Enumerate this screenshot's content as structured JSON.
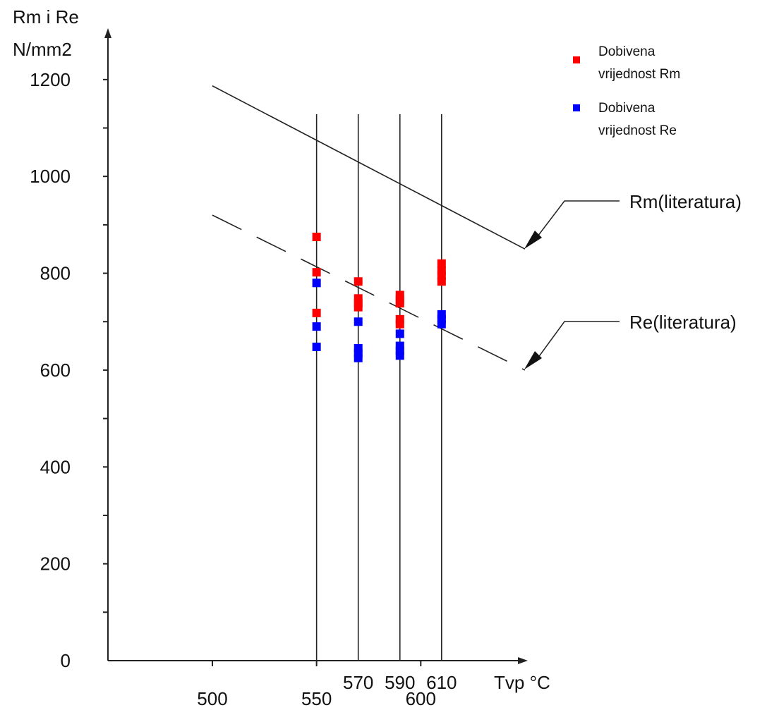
{
  "chart_data": {
    "type": "scatter",
    "title": "",
    "ylabel": [
      "Rm i Re",
      "N/mm2"
    ],
    "xlabel": "Tvp °C",
    "ylim": [
      0,
      1200
    ],
    "y_ticks": [
      0,
      200,
      400,
      600,
      800,
      1000,
      1200
    ],
    "x_ticks_low": [
      "500",
      "550",
      "600"
    ],
    "x_ticks_low_values": [
      500,
      550,
      600
    ],
    "x_ticks_high": [
      "570",
      "590",
      "610"
    ],
    "x_ticks_high_values": [
      570,
      590,
      610
    ],
    "vertical_lines_x": [
      550,
      570,
      590,
      610
    ],
    "legend": [
      {
        "name": [
          "Dobivena",
          "vrijednost Rm"
        ],
        "color": "#ff0000"
      },
      {
        "name": [
          "Dobivena",
          "vrijednost Re"
        ],
        "color": "#0000ff"
      }
    ],
    "reference_lines": [
      {
        "name": "Rm(literatura)",
        "style": "solid",
        "points": [
          [
            500,
            1187
          ],
          [
            650,
            850
          ]
        ]
      },
      {
        "name": "Re(literatura)",
        "style": "dashed",
        "points": [
          [
            500,
            920
          ],
          [
            650,
            600
          ]
        ]
      }
    ],
    "series": [
      {
        "name": "Dobivena vrijednost Rm",
        "color": "#ff0000",
        "points": [
          [
            550,
            875
          ],
          [
            550,
            802
          ],
          [
            550,
            718
          ],
          [
            570,
            783
          ],
          [
            570,
            748
          ],
          [
            570,
            738
          ],
          [
            570,
            730
          ],
          [
            590,
            755
          ],
          [
            590,
            745
          ],
          [
            590,
            738
          ],
          [
            590,
            705
          ],
          [
            590,
            695
          ],
          [
            610,
            820
          ],
          [
            610,
            805
          ],
          [
            610,
            795
          ],
          [
            610,
            783
          ]
        ]
      },
      {
        "name": "Dobivena vrijednost Re",
        "color": "#0000ff",
        "points": [
          [
            550,
            780
          ],
          [
            550,
            690
          ],
          [
            550,
            648
          ],
          [
            570,
            700
          ],
          [
            570,
            645
          ],
          [
            570,
            635
          ],
          [
            570,
            625
          ],
          [
            590,
            675
          ],
          [
            590,
            650
          ],
          [
            590,
            640
          ],
          [
            590,
            630
          ],
          [
            610,
            715
          ],
          [
            610,
            705
          ],
          [
            610,
            695
          ]
        ]
      }
    ]
  }
}
